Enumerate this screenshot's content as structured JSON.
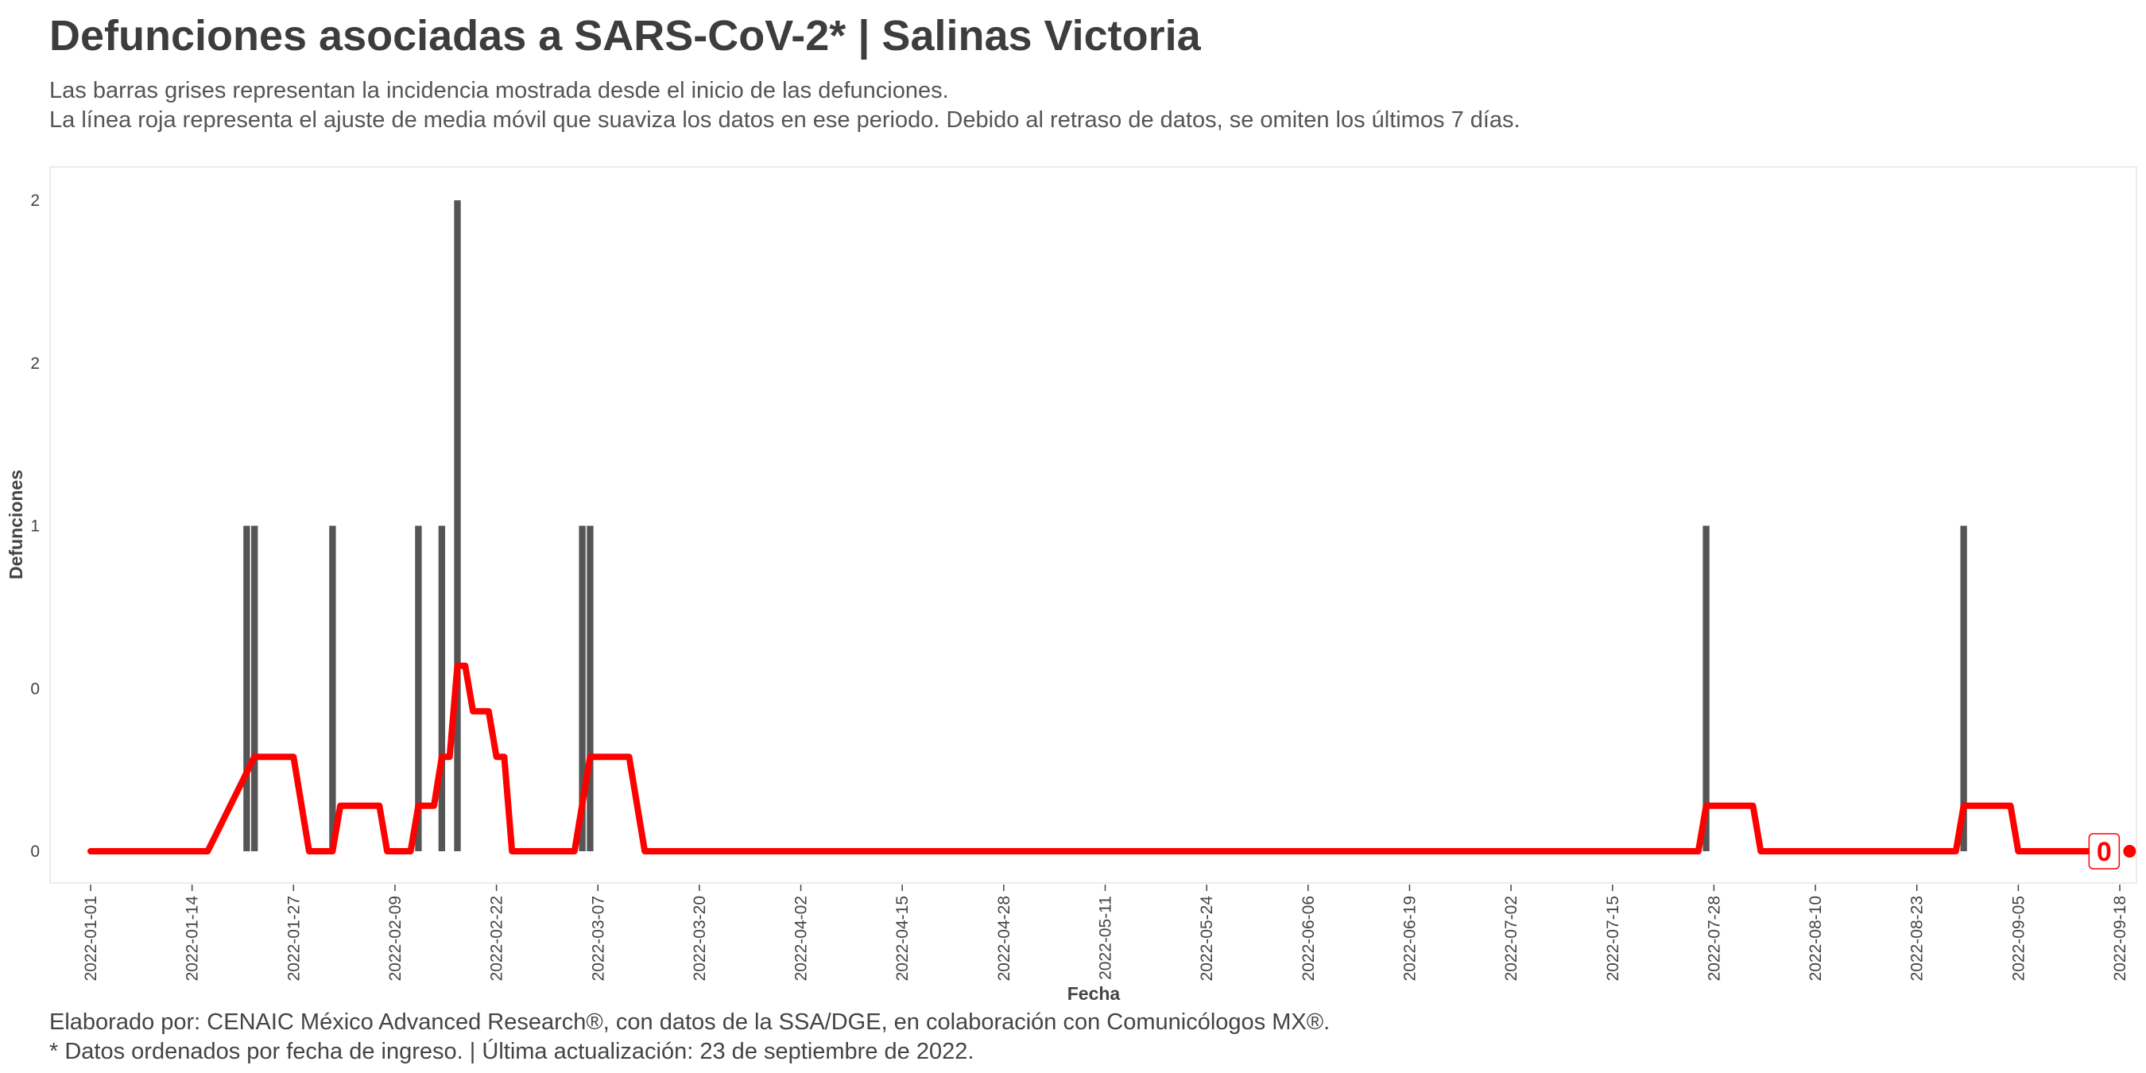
{
  "header": {
    "title": "Defunciones asociadas a SARS-CoV-2* | Salinas Victoria",
    "subtitle_line1": "Las barras grises representan la incidencia mostrada desde el inicio de las defunciones.",
    "subtitle_line2": "La línea roja representa el ajuste de media móvil que suaviza los datos en ese periodo. Debido al retraso de datos, se omiten los últimos 7 días."
  },
  "footer": {
    "caption_line1": "Elaborado por: CENAIC México Advanced Research®, con datos de la SSA/DGE, en colaboración con Comunicólogos MX®.",
    "caption_line2": "* Datos ordenados por fecha de ingreso. | Última actualización: 23 de septiembre de 2022."
  },
  "colors": {
    "bars": "#555555",
    "line": "#ff0000",
    "panel_border": "#e6e6e6"
  },
  "chart_data": {
    "type": "bar",
    "xlabel": "Fecha",
    "ylabel": "Defunciones",
    "x_range": [
      "2022-01-01",
      "2022-09-18"
    ],
    "y_range": [
      0,
      2
    ],
    "x_tick_labels": [
      "2022-01-01",
      "2022-01-14",
      "2022-01-27",
      "2022-02-09",
      "2022-02-22",
      "2022-03-07",
      "2022-03-20",
      "2022-04-02",
      "2022-04-15",
      "2022-04-28",
      "2022-05-11",
      "2022-05-24",
      "2022-06-06",
      "2022-06-19",
      "2022-07-02",
      "2022-07-15",
      "2022-07-28",
      "2022-08-10",
      "2022-08-23",
      "2022-09-05",
      "2022-09-18"
    ],
    "y_tick_values": [
      0,
      0.5,
      1,
      1.5,
      2
    ],
    "y_tick_labels": [
      "0",
      "0",
      "1",
      "2",
      "2"
    ],
    "grid": false,
    "legend": "none",
    "bars": {
      "name": "Defunciones",
      "points": [
        {
          "date": "2022-01-21",
          "value": 1
        },
        {
          "date": "2022-01-22",
          "value": 1
        },
        {
          "date": "2022-02-01",
          "value": 1
        },
        {
          "date": "2022-02-12",
          "value": 1
        },
        {
          "date": "2022-02-15",
          "value": 1
        },
        {
          "date": "2022-02-17",
          "value": 2
        },
        {
          "date": "2022-03-05",
          "value": 1
        },
        {
          "date": "2022-03-06",
          "value": 1
        },
        {
          "date": "2022-07-27",
          "value": 1
        },
        {
          "date": "2022-08-29",
          "value": 1
        }
      ]
    },
    "moving_average": {
      "name": "Media móvil",
      "points": [
        {
          "date": "2022-01-01",
          "value": 0
        },
        {
          "date": "2022-01-16",
          "value": 0
        },
        {
          "date": "2022-01-22",
          "value": 0.29
        },
        {
          "date": "2022-01-27",
          "value": 0.29
        },
        {
          "date": "2022-01-29",
          "value": 0
        },
        {
          "date": "2022-02-01",
          "value": 0
        },
        {
          "date": "2022-02-02",
          "value": 0.14
        },
        {
          "date": "2022-02-07",
          "value": 0.14
        },
        {
          "date": "2022-02-08",
          "value": 0
        },
        {
          "date": "2022-02-11",
          "value": 0
        },
        {
          "date": "2022-02-12",
          "value": 0.14
        },
        {
          "date": "2022-02-14",
          "value": 0.14
        },
        {
          "date": "2022-02-15",
          "value": 0.29
        },
        {
          "date": "2022-02-16",
          "value": 0.29
        },
        {
          "date": "2022-02-17",
          "value": 0.57
        },
        {
          "date": "2022-02-18",
          "value": 0.57
        },
        {
          "date": "2022-02-19",
          "value": 0.43
        },
        {
          "date": "2022-02-21",
          "value": 0.43
        },
        {
          "date": "2022-02-22",
          "value": 0.29
        },
        {
          "date": "2022-02-23",
          "value": 0.29
        },
        {
          "date": "2022-02-24",
          "value": 0
        },
        {
          "date": "2022-03-04",
          "value": 0
        },
        {
          "date": "2022-03-06",
          "value": 0.29
        },
        {
          "date": "2022-03-11",
          "value": 0.29
        },
        {
          "date": "2022-03-13",
          "value": 0
        },
        {
          "date": "2022-07-26",
          "value": 0
        },
        {
          "date": "2022-07-27",
          "value": 0.14
        },
        {
          "date": "2022-08-02",
          "value": 0.14
        },
        {
          "date": "2022-08-03",
          "value": 0
        },
        {
          "date": "2022-08-28",
          "value": 0
        },
        {
          "date": "2022-08-29",
          "value": 0.14
        },
        {
          "date": "2022-09-04",
          "value": 0.14
        },
        {
          "date": "2022-09-05",
          "value": 0
        },
        {
          "date": "2022-09-16",
          "value": 0
        }
      ]
    },
    "end_label": {
      "date": "2022-09-16",
      "value": 0,
      "text": "0"
    }
  }
}
